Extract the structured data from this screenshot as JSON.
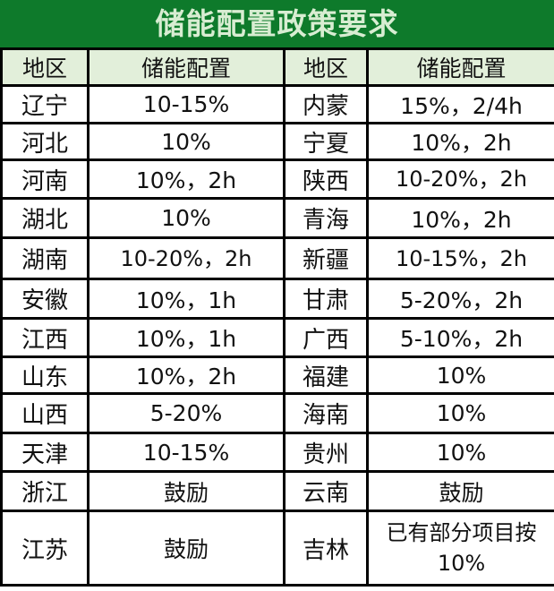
{
  "title": "储能配置政策要求",
  "headers": [
    "地区",
    "储能配置",
    "地区",
    "储能配置"
  ],
  "rows": [
    [
      "辽宁",
      "10-15%",
      "内蒙",
      "15%，2/4h"
    ],
    [
      "河北",
      "10%",
      "宁夏",
      "10%，2h"
    ],
    [
      "河南",
      "10%，2h",
      "陕西",
      "10-20%，2h"
    ],
    [
      "湖北",
      "10%",
      "青海",
      "10%，2h"
    ],
    [
      "湖南",
      "10-20%，2h",
      "新疆",
      "10-15%，2h"
    ],
    [
      "安徽",
      "10%，1h",
      "甘肃",
      "5-20%，2h"
    ],
    [
      "江西",
      "10%，1h",
      "广西",
      "5-10%，2h"
    ],
    [
      "山东",
      "10%，2h",
      "福建",
      "10%"
    ],
    [
      "山西",
      "5-20%",
      "海南",
      "10%"
    ],
    [
      "天津",
      "10-15%",
      "贵州",
      "10%"
    ],
    [
      "浙江",
      "鼓励",
      "云南",
      "鼓励"
    ],
    [
      "江苏",
      "鼓励",
      "吉林",
      "已有部分项目按10%"
    ]
  ],
  "colors": {
    "title_bg": "#0e7a2b",
    "title_text": "#d8edd2",
    "header_bg": "#e2efda"
  }
}
